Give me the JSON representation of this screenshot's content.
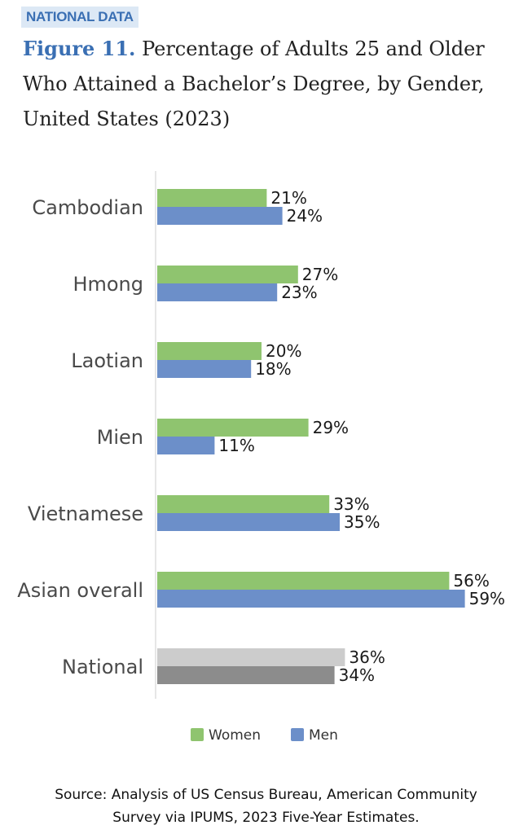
{
  "header": {
    "tag": "NATIONAL DATA",
    "figure_label": "Figure 11.",
    "title": "Percentage of Adults 25 and Older Who Attained a Bachelor’s Degree, by Gender, United States (2023)"
  },
  "source": {
    "line1": "Source: Analysis of US Census Bureau, American Community",
    "line2": "Survey via IPUMS, 2023 Five-Year Estimates."
  },
  "colors": {
    "women": "#8fc46f",
    "men": "#6c8fc9",
    "national_women": "#cccccc",
    "national_men": "#8c8c8c",
    "axis": "#e6e6e6"
  },
  "chart_data": {
    "type": "bar",
    "orientation": "horizontal",
    "categories": [
      "Cambodian",
      "Hmong",
      "Laotian",
      "Mien",
      "Vietnamese",
      "Asian overall",
      "National"
    ],
    "series": [
      {
        "name": "Women",
        "values": [
          21,
          27,
          20,
          29,
          33,
          56,
          36
        ]
      },
      {
        "name": "Men",
        "values": [
          24,
          23,
          18,
          11,
          35,
          59,
          34
        ]
      }
    ],
    "value_suffix": "%",
    "xlim": [
      0,
      60
    ],
    "legend_position": "bottom",
    "grid": false
  }
}
